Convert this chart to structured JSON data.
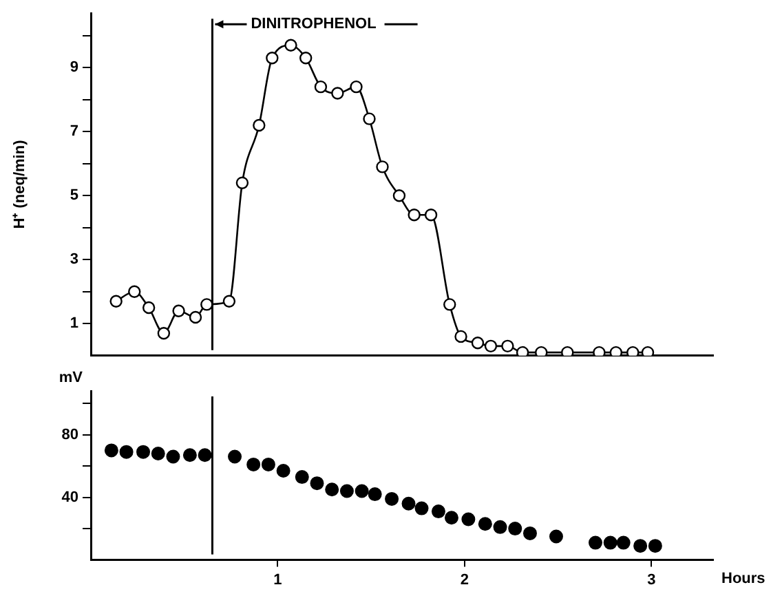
{
  "chart_data": [
    {
      "type": "line",
      "ylabel": "H⁺ (neq/min)",
      "xlim": [
        0,
        3.33
      ],
      "ylim": [
        0,
        10.7
      ],
      "yticks": [
        1,
        {
          "value": 2,
          "label": null
        },
        3,
        {
          "value": 4,
          "label": null
        },
        5,
        {
          "value": 6,
          "label": null
        },
        7,
        {
          "value": 8,
          "label": null
        },
        9,
        {
          "value": 10,
          "label": null
        }
      ],
      "tick_labels": "y",
      "grid": false,
      "legend": false,
      "marker": "circle",
      "line_style": "solid",
      "ref_lines": [
        {
          "axis": "x",
          "value": 0.65,
          "label": "DINITROPHENOL"
        }
      ],
      "series": [
        {
          "color": "#000000",
          "x": [
            0.135,
            0.233,
            0.31,
            0.39,
            0.47,
            0.56,
            0.62,
            0.74,
            0.81,
            0.9,
            0.97,
            1.07,
            1.15,
            1.23,
            1.32,
            1.42,
            1.49,
            1.56,
            1.65,
            1.73,
            1.82,
            1.92,
            1.98,
            2.07,
            2.14,
            2.23,
            2.31,
            2.41,
            2.55,
            2.72,
            2.81,
            2.9,
            2.98
          ],
          "values": [
            1.7,
            2.0,
            1.5,
            0.7,
            1.4,
            1.2,
            1.6,
            1.7,
            5.4,
            7.2,
            9.3,
            9.7,
            9.3,
            8.4,
            8.2,
            8.4,
            7.4,
            5.9,
            5.0,
            4.4,
            4.4,
            1.6,
            0.6,
            0.4,
            0.3,
            0.3,
            0.1,
            0.1,
            0.1,
            0.1,
            0.1,
            0.1,
            0.1
          ]
        }
      ]
    },
    {
      "type": "scatter",
      "ylabel": "mV",
      "xlabel": "Hours",
      "xlim": [
        0,
        3.33
      ],
      "xticks": [
        1,
        2,
        3
      ],
      "ylim": [
        0,
        108
      ],
      "yticks": [
        {
          "value": 20,
          "label": null
        },
        40,
        {
          "value": 60,
          "label": null
        },
        80,
        {
          "value": 100,
          "label": null
        }
      ],
      "grid": false,
      "legend": false,
      "marker": "circle",
      "ref_lines": [
        {
          "axis": "x",
          "value": 0.65
        }
      ],
      "series": [
        {
          "color": "#000000",
          "x": [
            0.11,
            0.19,
            0.28,
            0.36,
            0.44,
            0.53,
            0.61,
            0.77,
            0.87,
            0.95,
            1.03,
            1.13,
            1.21,
            1.29,
            1.37,
            1.45,
            1.52,
            1.61,
            1.7,
            1.77,
            1.86,
            1.93,
            2.02,
            2.11,
            2.19,
            2.27,
            2.35,
            2.49,
            2.7,
            2.78,
            2.85,
            2.94,
            3.02
          ],
          "values": [
            70,
            69,
            69,
            68,
            66,
            67,
            67,
            66,
            61,
            61,
            57,
            53,
            49,
            45,
            44,
            44,
            42,
            39,
            36,
            33,
            31,
            27,
            26,
            23,
            21,
            20,
            17,
            15,
            11,
            11,
            11,
            9,
            9
          ]
        }
      ]
    }
  ]
}
